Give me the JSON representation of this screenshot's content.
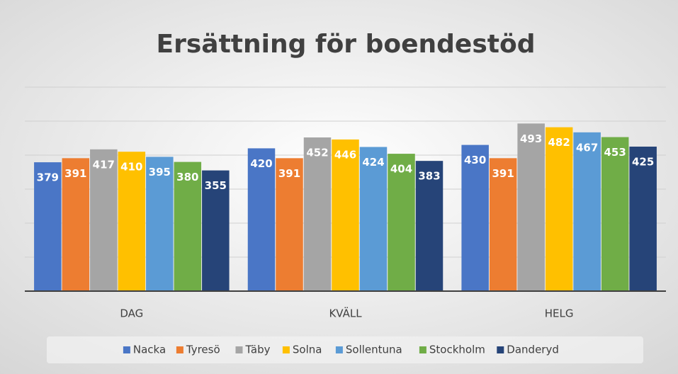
{
  "chart_data": {
    "type": "bar",
    "title": "Ersättning för boendestöd",
    "categories": [
      "DAG",
      "KVÄLL",
      "HELG"
    ],
    "series": [
      {
        "name": "Nacka",
        "color": "#4a76c6",
        "values": [
          379,
          420,
          430
        ]
      },
      {
        "name": "Tyresö",
        "color": "#ed7d31",
        "values": [
          391,
          391,
          391
        ]
      },
      {
        "name": "Täby",
        "color": "#a5a5a5",
        "values": [
          417,
          452,
          493
        ]
      },
      {
        "name": "Solna",
        "color": "#ffc000",
        "values": [
          410,
          446,
          482
        ]
      },
      {
        "name": "Sollentuna",
        "color": "#5b9bd5",
        "values": [
          395,
          424,
          467
        ]
      },
      {
        "name": "Stockholm",
        "color": "#70ad47",
        "values": [
          380,
          404,
          453
        ]
      },
      {
        "name": "Danderyd",
        "color": "#264478",
        "values": [
          355,
          383,
          425
        ]
      }
    ],
    "ylim": [
      0,
      600
    ],
    "yticks": [
      0,
      100,
      200,
      300,
      400,
      500,
      600
    ],
    "grid": true,
    "legend": "bottom"
  }
}
